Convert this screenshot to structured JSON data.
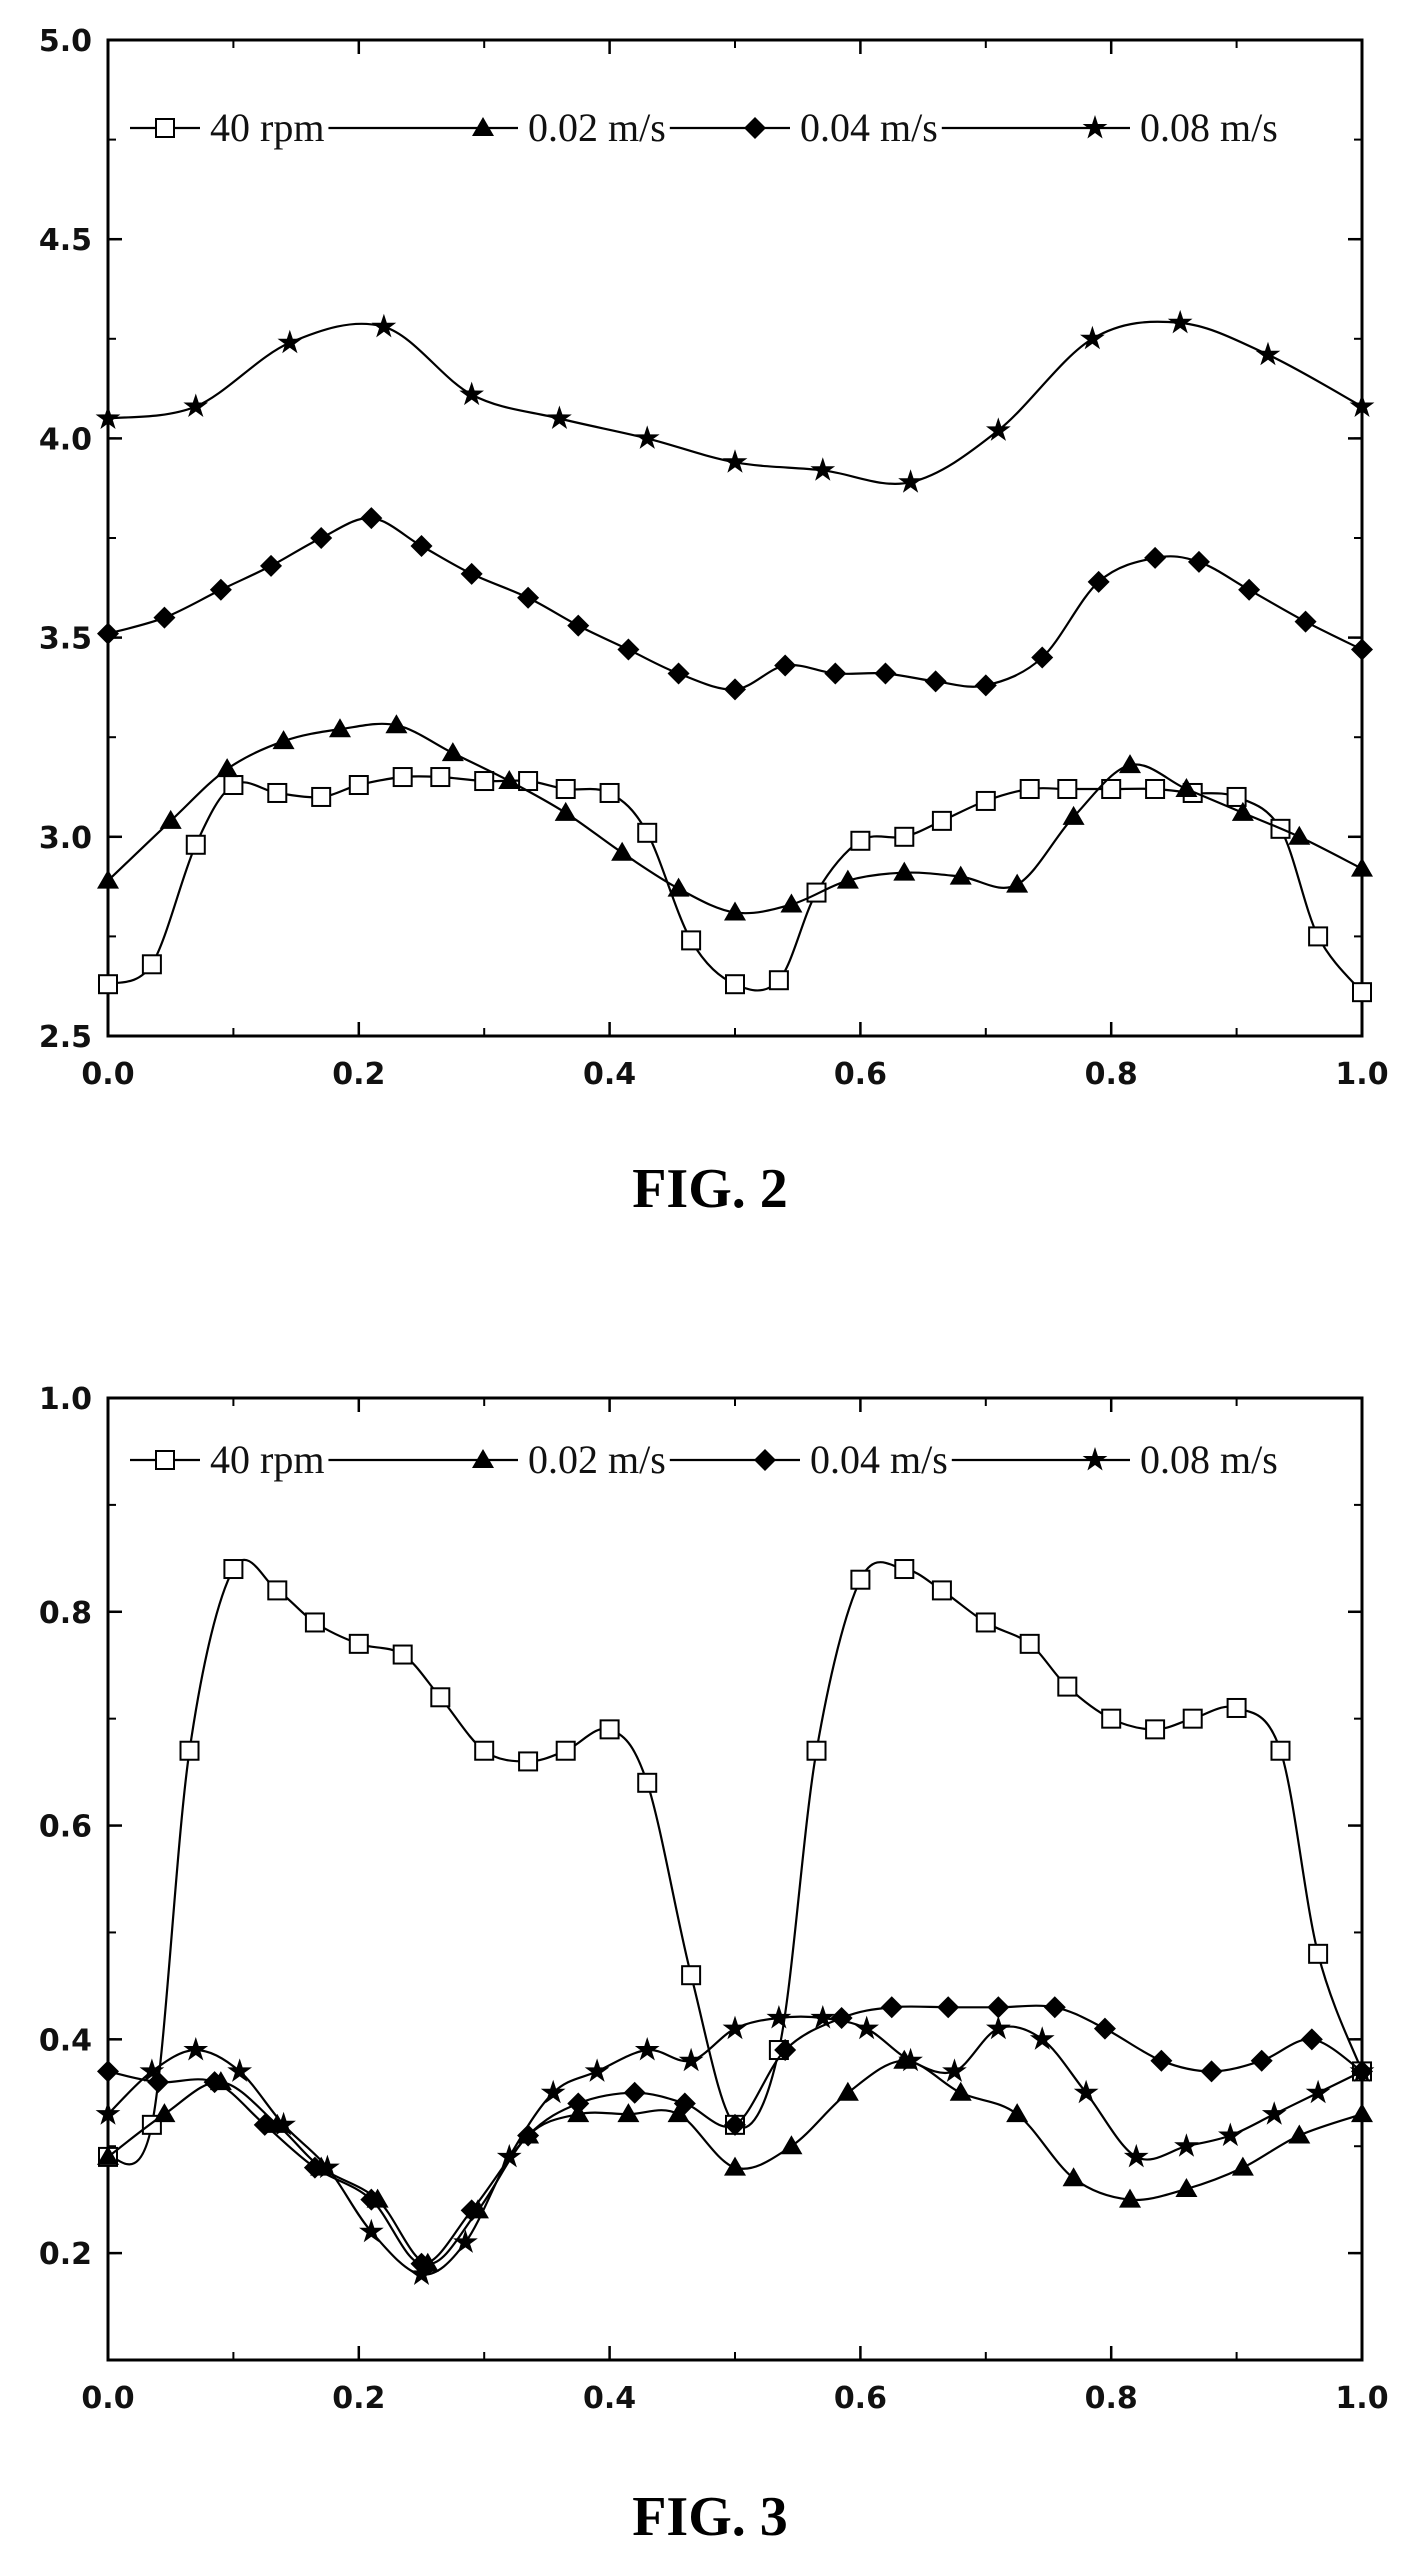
{
  "chart_data": [
    {
      "type": "line",
      "caption": "FIG. 2",
      "xlim": [
        0.0,
        1.0
      ],
      "ylim": [
        2.5,
        5.0
      ],
      "xticks": [
        "0.0",
        "0.2",
        "0.4",
        "0.6",
        "0.8",
        "1.0"
      ],
      "yticks": [
        "2.5",
        "3.0",
        "3.5",
        "4.0",
        "4.5",
        "5.0"
      ],
      "legend_position": "top",
      "grid": false,
      "series": [
        {
          "name": "40 rpm",
          "marker": "open-square",
          "points": [
            [
              0.0,
              2.63
            ],
            [
              0.035,
              2.68
            ],
            [
              0.07,
              2.98
            ],
            [
              0.1,
              3.13
            ],
            [
              0.135,
              3.11
            ],
            [
              0.17,
              3.1
            ],
            [
              0.2,
              3.13
            ],
            [
              0.235,
              3.15
            ],
            [
              0.265,
              3.15
            ],
            [
              0.3,
              3.14
            ],
            [
              0.335,
              3.14
            ],
            [
              0.365,
              3.12
            ],
            [
              0.4,
              3.11
            ],
            [
              0.43,
              3.01
            ],
            [
              0.465,
              2.74
            ],
            [
              0.5,
              2.63
            ],
            [
              0.535,
              2.64
            ],
            [
              0.565,
              2.86
            ],
            [
              0.6,
              2.99
            ],
            [
              0.635,
              3.0
            ],
            [
              0.665,
              3.04
            ],
            [
              0.7,
              3.09
            ],
            [
              0.735,
              3.12
            ],
            [
              0.765,
              3.12
            ],
            [
              0.8,
              3.12
            ],
            [
              0.835,
              3.12
            ],
            [
              0.865,
              3.11
            ],
            [
              0.9,
              3.1
            ],
            [
              0.935,
              3.02
            ],
            [
              0.965,
              2.75
            ],
            [
              1.0,
              2.61
            ]
          ]
        },
        {
          "name": "0.02 m/s",
          "marker": "filled-triangle",
          "points": [
            [
              0.0,
              2.89
            ],
            [
              0.05,
              3.04
            ],
            [
              0.095,
              3.17
            ],
            [
              0.14,
              3.24
            ],
            [
              0.185,
              3.27
            ],
            [
              0.23,
              3.28
            ],
            [
              0.275,
              3.21
            ],
            [
              0.32,
              3.14
            ],
            [
              0.365,
              3.06
            ],
            [
              0.41,
              2.96
            ],
            [
              0.455,
              2.87
            ],
            [
              0.5,
              2.81
            ],
            [
              0.545,
              2.83
            ],
            [
              0.59,
              2.89
            ],
            [
              0.635,
              2.91
            ],
            [
              0.68,
              2.9
            ],
            [
              0.725,
              2.88
            ],
            [
              0.77,
              3.05
            ],
            [
              0.815,
              3.18
            ],
            [
              0.86,
              3.12
            ],
            [
              0.905,
              3.06
            ],
            [
              0.95,
              3.0
            ],
            [
              1.0,
              2.92
            ]
          ]
        },
        {
          "name": "0.04 m/s",
          "marker": "filled-diamond",
          "points": [
            [
              0.0,
              3.51
            ],
            [
              0.045,
              3.55
            ],
            [
              0.09,
              3.62
            ],
            [
              0.13,
              3.68
            ],
            [
              0.17,
              3.75
            ],
            [
              0.21,
              3.8
            ],
            [
              0.25,
              3.73
            ],
            [
              0.29,
              3.66
            ],
            [
              0.335,
              3.6
            ],
            [
              0.375,
              3.53
            ],
            [
              0.415,
              3.47
            ],
            [
              0.455,
              3.41
            ],
            [
              0.5,
              3.37
            ],
            [
              0.54,
              3.43
            ],
            [
              0.58,
              3.41
            ],
            [
              0.62,
              3.41
            ],
            [
              0.66,
              3.39
            ],
            [
              0.7,
              3.38
            ],
            [
              0.745,
              3.45
            ],
            [
              0.79,
              3.64
            ],
            [
              0.835,
              3.7
            ],
            [
              0.87,
              3.69
            ],
            [
              0.91,
              3.62
            ],
            [
              0.955,
              3.54
            ],
            [
              1.0,
              3.47
            ]
          ]
        },
        {
          "name": "0.08 m/s",
          "marker": "filled-star",
          "points": [
            [
              0.0,
              4.05
            ],
            [
              0.07,
              4.08
            ],
            [
              0.145,
              4.24
            ],
            [
              0.22,
              4.28
            ],
            [
              0.29,
              4.11
            ],
            [
              0.36,
              4.05
            ],
            [
              0.43,
              4.0
            ],
            [
              0.5,
              3.94
            ],
            [
              0.57,
              3.92
            ],
            [
              0.64,
              3.89
            ],
            [
              0.71,
              4.02
            ],
            [
              0.785,
              4.25
            ],
            [
              0.855,
              4.29
            ],
            [
              0.925,
              4.21
            ],
            [
              1.0,
              4.08
            ]
          ]
        }
      ]
    },
    {
      "type": "line",
      "caption": "FIG. 3",
      "xlim": [
        0.0,
        1.0
      ],
      "ylim": [
        0.1,
        1.0
      ],
      "xticks": [
        "0.0",
        "0.2",
        "0.4",
        "0.6",
        "0.8",
        "1.0"
      ],
      "yticks": [
        "0.2",
        "0.4",
        "0.6",
        "0.8",
        "1.0"
      ],
      "legend_position": "top",
      "grid": false,
      "series": [
        {
          "name": "40 rpm",
          "marker": "open-square",
          "points": [
            [
              0.0,
              0.29
            ],
            [
              0.035,
              0.32
            ],
            [
              0.065,
              0.67
            ],
            [
              0.1,
              0.84
            ],
            [
              0.135,
              0.82
            ],
            [
              0.165,
              0.79
            ],
            [
              0.2,
              0.77
            ],
            [
              0.235,
              0.76
            ],
            [
              0.265,
              0.72
            ],
            [
              0.3,
              0.67
            ],
            [
              0.335,
              0.66
            ],
            [
              0.365,
              0.67
            ],
            [
              0.4,
              0.69
            ],
            [
              0.43,
              0.64
            ],
            [
              0.465,
              0.46
            ],
            [
              0.5,
              0.32
            ],
            [
              0.535,
              0.39
            ],
            [
              0.565,
              0.67
            ],
            [
              0.6,
              0.83
            ],
            [
              0.635,
              0.84
            ],
            [
              0.665,
              0.82
            ],
            [
              0.7,
              0.79
            ],
            [
              0.735,
              0.77
            ],
            [
              0.765,
              0.73
            ],
            [
              0.8,
              0.7
            ],
            [
              0.835,
              0.69
            ],
            [
              0.865,
              0.7
            ],
            [
              0.9,
              0.71
            ],
            [
              0.935,
              0.67
            ],
            [
              0.965,
              0.48
            ],
            [
              1.0,
              0.37
            ]
          ]
        },
        {
          "name": "0.02 m/s",
          "marker": "filled-triangle",
          "points": [
            [
              0.0,
              0.29
            ],
            [
              0.045,
              0.33
            ],
            [
              0.09,
              0.36
            ],
            [
              0.135,
              0.32
            ],
            [
              0.17,
              0.28
            ],
            [
              0.215,
              0.25
            ],
            [
              0.255,
              0.19
            ],
            [
              0.295,
              0.24
            ],
            [
              0.335,
              0.31
            ],
            [
              0.375,
              0.33
            ],
            [
              0.415,
              0.33
            ],
            [
              0.455,
              0.33
            ],
            [
              0.5,
              0.28
            ],
            [
              0.545,
              0.3
            ],
            [
              0.59,
              0.35
            ],
            [
              0.635,
              0.38
            ],
            [
              0.68,
              0.35
            ],
            [
              0.725,
              0.33
            ],
            [
              0.77,
              0.27
            ],
            [
              0.815,
              0.25
            ],
            [
              0.86,
              0.26
            ],
            [
              0.905,
              0.28
            ],
            [
              0.95,
              0.31
            ],
            [
              1.0,
              0.33
            ]
          ]
        },
        {
          "name": "0.04 m/s",
          "marker": "filled-diamond",
          "points": [
            [
              0.0,
              0.37
            ],
            [
              0.04,
              0.36
            ],
            [
              0.085,
              0.36
            ],
            [
              0.125,
              0.32
            ],
            [
              0.165,
              0.28
            ],
            [
              0.21,
              0.25
            ],
            [
              0.25,
              0.19
            ],
            [
              0.29,
              0.24
            ],
            [
              0.335,
              0.31
            ],
            [
              0.375,
              0.34
            ],
            [
              0.42,
              0.35
            ],
            [
              0.46,
              0.34
            ],
            [
              0.5,
              0.32
            ],
            [
              0.54,
              0.39
            ],
            [
              0.585,
              0.42
            ],
            [
              0.625,
              0.43
            ],
            [
              0.67,
              0.43
            ],
            [
              0.71,
              0.43
            ],
            [
              0.755,
              0.43
            ],
            [
              0.795,
              0.41
            ],
            [
              0.84,
              0.38
            ],
            [
              0.88,
              0.37
            ],
            [
              0.92,
              0.38
            ],
            [
              0.96,
              0.4
            ],
            [
              1.0,
              0.37
            ]
          ]
        },
        {
          "name": "0.08 m/s",
          "marker": "filled-star",
          "points": [
            [
              0.0,
              0.33
            ],
            [
              0.035,
              0.37
            ],
            [
              0.07,
              0.39
            ],
            [
              0.105,
              0.37
            ],
            [
              0.14,
              0.32
            ],
            [
              0.175,
              0.28
            ],
            [
              0.21,
              0.22
            ],
            [
              0.25,
              0.18
            ],
            [
              0.285,
              0.21
            ],
            [
              0.32,
              0.29
            ],
            [
              0.355,
              0.35
            ],
            [
              0.39,
              0.37
            ],
            [
              0.43,
              0.39
            ],
            [
              0.465,
              0.38
            ],
            [
              0.5,
              0.41
            ],
            [
              0.535,
              0.42
            ],
            [
              0.57,
              0.42
            ],
            [
              0.605,
              0.41
            ],
            [
              0.64,
              0.38
            ],
            [
              0.675,
              0.37
            ],
            [
              0.71,
              0.41
            ],
            [
              0.745,
              0.4
            ],
            [
              0.78,
              0.35
            ],
            [
              0.82,
              0.29
            ],
            [
              0.86,
              0.3
            ],
            [
              0.895,
              0.31
            ],
            [
              0.93,
              0.33
            ],
            [
              0.965,
              0.35
            ],
            [
              1.0,
              0.37
            ]
          ]
        }
      ]
    }
  ]
}
